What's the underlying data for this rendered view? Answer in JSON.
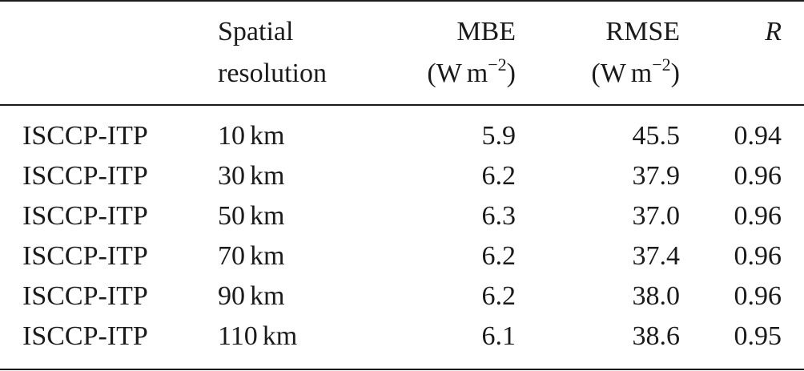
{
  "header": {
    "resolution_line1": "Spatial",
    "resolution_line2": "resolution",
    "mbe_line1": "MBE",
    "mbe_unit_open": "(W",
    "mbe_unit_m": "m",
    "mbe_unit_exp": "−2",
    "mbe_unit_close": ")",
    "rmse_line1": "RMSE",
    "rmse_unit_open": "(W",
    "rmse_unit_m": "m",
    "rmse_unit_exp": "−2",
    "rmse_unit_close": ")",
    "r_label": "R"
  },
  "rows": [
    {
      "name": "ISCCP-ITP",
      "resolution_value": "10",
      "resolution_unit": "km",
      "mbe": "5.9",
      "rmse": "45.5",
      "r": "0.94"
    },
    {
      "name": "ISCCP-ITP",
      "resolution_value": "30",
      "resolution_unit": "km",
      "mbe": "6.2",
      "rmse": "37.9",
      "r": "0.96"
    },
    {
      "name": "ISCCP-ITP",
      "resolution_value": "50",
      "resolution_unit": "km",
      "mbe": "6.3",
      "rmse": "37.0",
      "r": "0.96"
    },
    {
      "name": "ISCCP-ITP",
      "resolution_value": "70",
      "resolution_unit": "km",
      "mbe": "6.2",
      "rmse": "37.4",
      "r": "0.96"
    },
    {
      "name": "ISCCP-ITP",
      "resolution_value": "90",
      "resolution_unit": "km",
      "mbe": "6.2",
      "rmse": "38.0",
      "r": "0.96"
    },
    {
      "name": "ISCCP-ITP",
      "resolution_value": "110",
      "resolution_unit": "km",
      "mbe": "6.1",
      "rmse": "38.6",
      "r": "0.95"
    }
  ]
}
